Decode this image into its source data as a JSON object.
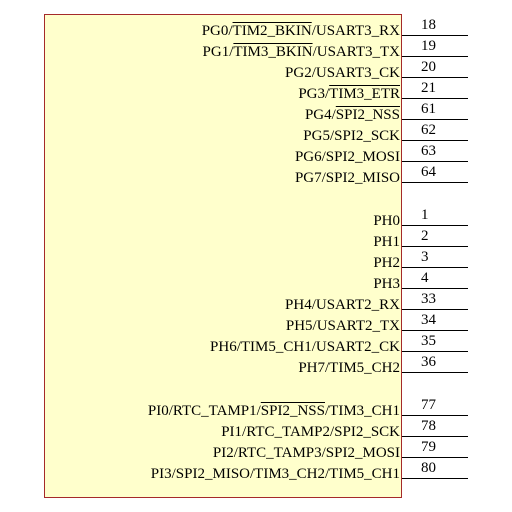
{
  "pins": [
    {
      "number": "18",
      "parts": [
        {
          "t": "PG0/"
        },
        {
          "t": "TIM2_BKIN",
          "overline": true
        },
        {
          "t": "/USART3_RX"
        }
      ]
    },
    {
      "number": "19",
      "parts": [
        {
          "t": "PG1/"
        },
        {
          "t": "TIM3_BKIN",
          "overline": true
        },
        {
          "t": "/USART3_TX"
        }
      ]
    },
    {
      "number": "20",
      "parts": [
        {
          "t": "PG2/USART3_CK"
        }
      ]
    },
    {
      "number": "21",
      "parts": [
        {
          "t": "PG3/"
        },
        {
          "t": "TIM3_ETR",
          "overline": true
        }
      ]
    },
    {
      "number": "61",
      "parts": [
        {
          "t": "PG4/"
        },
        {
          "t": "SPI2_NSS",
          "overline": true
        }
      ]
    },
    {
      "number": "62",
      "parts": [
        {
          "t": "PG5/SPI2_SCK"
        }
      ]
    },
    {
      "number": "63",
      "parts": [
        {
          "t": "PG6/SPI2_MOSI"
        }
      ]
    },
    {
      "number": "64",
      "parts": [
        {
          "t": "PG7/SPI2_MISO"
        }
      ]
    },
    {
      "number": "1",
      "parts": [
        {
          "t": "PH0"
        }
      ]
    },
    {
      "number": "2",
      "parts": [
        {
          "t": "PH1"
        }
      ]
    },
    {
      "number": "3",
      "parts": [
        {
          "t": "PH2"
        }
      ]
    },
    {
      "number": "4",
      "parts": [
        {
          "t": "PH3"
        }
      ]
    },
    {
      "number": "33",
      "parts": [
        {
          "t": "PH4/USART2_RX"
        }
      ]
    },
    {
      "number": "34",
      "parts": [
        {
          "t": "PH5/USART2_TX"
        }
      ]
    },
    {
      "number": "35",
      "parts": [
        {
          "t": "PH6/TIM5_CH1/USART2_CK"
        }
      ]
    },
    {
      "number": "36",
      "parts": [
        {
          "t": "PH7/TIM5_CH2"
        }
      ]
    },
    {
      "number": "77",
      "parts": [
        {
          "t": "PI0/RTC_TAMP1/"
        },
        {
          "t": "SPI2_NSS",
          "overline": true
        },
        {
          "t": "/TIM3_CH1"
        }
      ]
    },
    {
      "number": "78",
      "parts": [
        {
          "t": "PI1/RTC_TAMP2/SPI2_SCK"
        }
      ]
    },
    {
      "number": "79",
      "parts": [
        {
          "t": "PI2/RTC_TAMP3/SPI2_MOSI"
        }
      ]
    },
    {
      "number": "80",
      "parts": [
        {
          "t": "PI3/SPI2_MISO/TIM3_CH2/TIM5_CH1"
        }
      ]
    }
  ],
  "colors": {
    "body_fill": "#ffffcc",
    "body_border": "#a52a2a",
    "pin_line": "#000000"
  }
}
